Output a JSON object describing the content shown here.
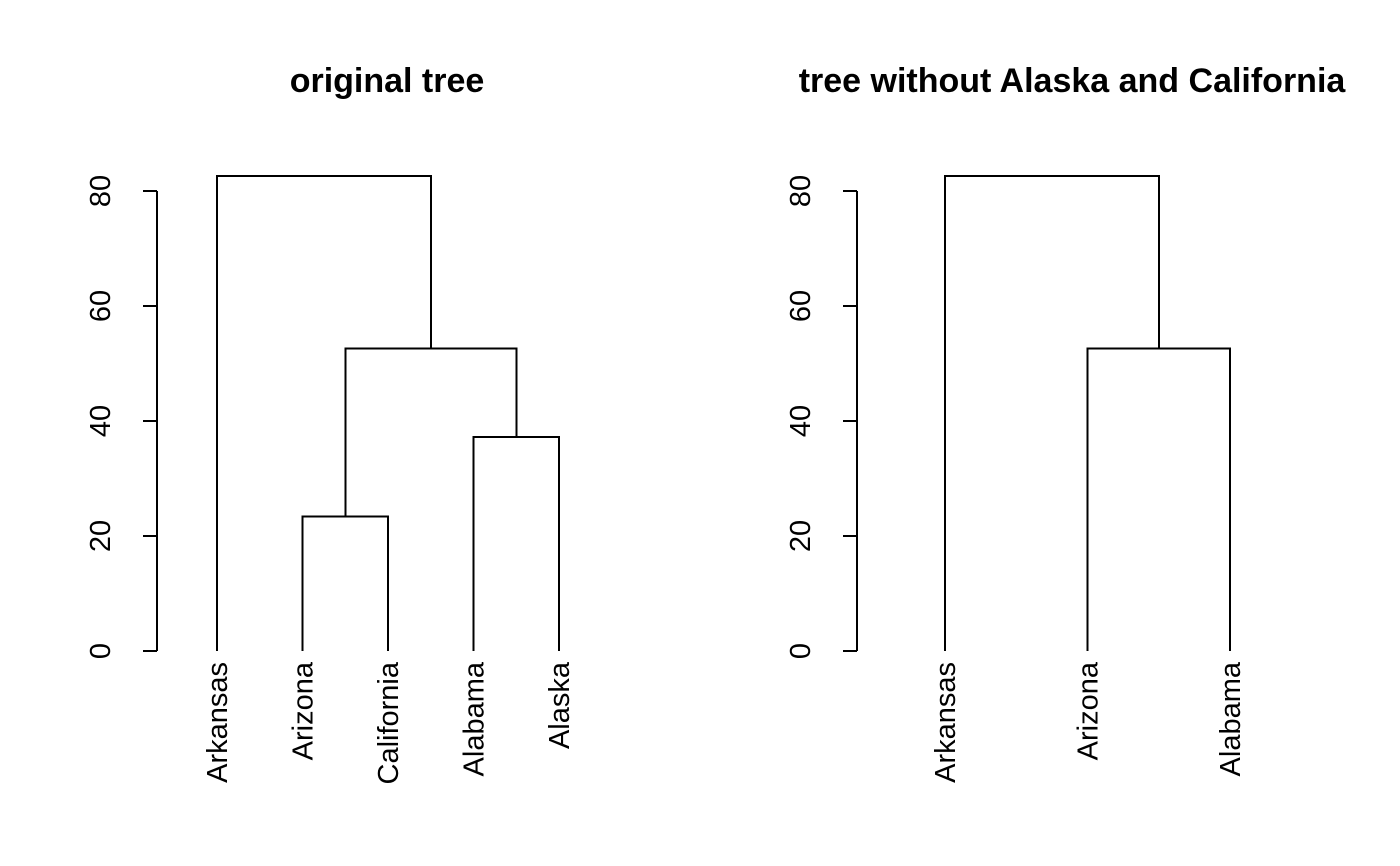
{
  "chart_data": [
    {
      "type": "dendrogram",
      "title": "original tree",
      "xlabel": "",
      "ylabel": "",
      "ylim": [
        0,
        83
      ],
      "yticks": [
        0,
        20,
        40,
        60,
        80
      ],
      "grid": false,
      "leaves": [
        "Arkansas",
        "Arizona",
        "California",
        "Alabama",
        "Alaska"
      ],
      "merges": [
        {
          "left": "Arizona",
          "right": "California",
          "height": 23.4
        },
        {
          "left": "Alabama",
          "right": "Alaska",
          "height": 37.2
        },
        {
          "left": "Arizona+California",
          "right": "Alabama+Alaska",
          "height": 52.6
        },
        {
          "left": "Arkansas",
          "right": "Arizona+California+Alabama+Alaska",
          "height": 82.6
        }
      ]
    },
    {
      "type": "dendrogram",
      "title": "tree without Alaska and California",
      "xlabel": "",
      "ylabel": "",
      "ylim": [
        0,
        83
      ],
      "yticks": [
        0,
        20,
        40,
        60,
        80
      ],
      "grid": false,
      "leaves": [
        "Arkansas",
        "Arizona",
        "Alabama"
      ],
      "merges": [
        {
          "left": "Arizona",
          "right": "Alabama",
          "height": 52.6
        },
        {
          "left": "Arkansas",
          "right": "Arizona+Alabama",
          "height": 82.6
        }
      ]
    }
  ]
}
